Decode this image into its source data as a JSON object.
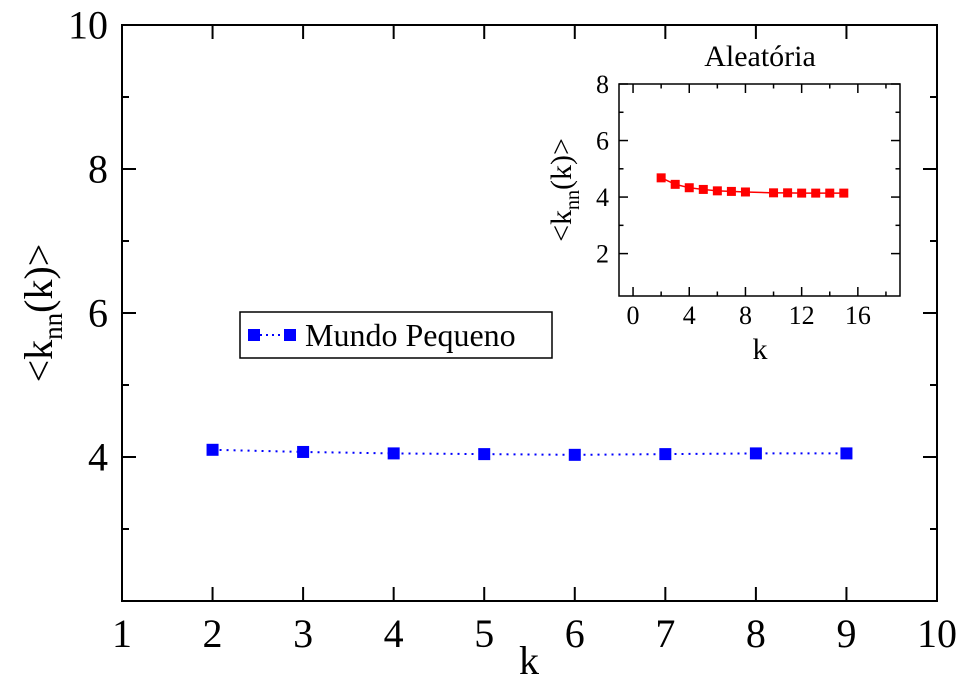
{
  "chart_data": [
    {
      "type": "line",
      "title": "",
      "xlabel": "k",
      "ylabel_main": "<k",
      "ylabel_sub": "nn",
      "ylabel_rest": "(k)>",
      "xlim": [
        1,
        10
      ],
      "ylim": [
        2,
        10
      ],
      "xticks": [
        1,
        2,
        3,
        4,
        5,
        6,
        7,
        8,
        9,
        10
      ],
      "yticks": [
        4,
        6,
        8,
        10
      ],
      "grid": false,
      "legend_position": "center-left",
      "series": [
        {
          "name": "Mundo Pequeno",
          "color": "#0000ff",
          "line_style": "dotted",
          "marker": "square",
          "x": [
            2,
            3,
            4,
            5,
            6,
            7,
            8,
            9
          ],
          "y": [
            4.1,
            4.07,
            4.05,
            4.04,
            4.03,
            4.04,
            4.05,
            4.05
          ]
        }
      ]
    },
    {
      "type": "line",
      "title": "Aleatória",
      "xlabel": "k",
      "ylabel_main": "<k",
      "ylabel_sub": "nn",
      "ylabel_rest": "(k)>",
      "xlim": [
        -1,
        19
      ],
      "ylim": [
        0.5,
        8
      ],
      "xticks": [
        0,
        4,
        8,
        12,
        16
      ],
      "yticks": [
        2,
        4,
        6,
        8
      ],
      "grid": false,
      "series": [
        {
          "color": "#ff0000",
          "line_style": "solid",
          "marker": "square",
          "x": [
            2,
            3,
            4,
            5,
            6,
            7,
            8,
            10,
            11,
            12,
            13,
            14,
            15
          ],
          "y": [
            4.68,
            4.45,
            4.33,
            4.27,
            4.22,
            4.2,
            4.18,
            4.15,
            4.15,
            4.14,
            4.14,
            4.14,
            4.14
          ]
        }
      ]
    }
  ]
}
